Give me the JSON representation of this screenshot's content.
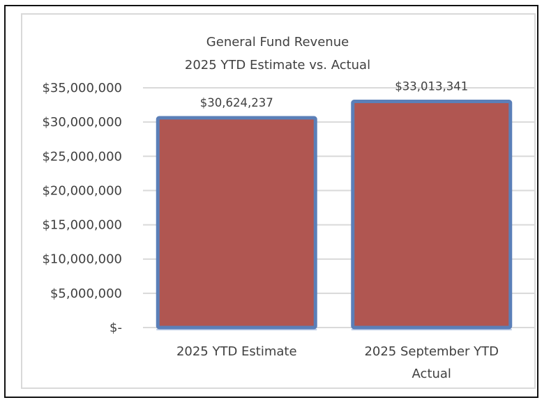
{
  "chart_data": {
    "type": "bar",
    "title": "General Fund Revenue",
    "subtitle": "2025 YTD Estimate vs. Actual",
    "title_lines": [
      "General Fund Revenue",
      "2025 YTD Estimate vs. Actual"
    ],
    "categories": [
      [
        "2025 YTD Estimate"
      ],
      [
        "2025 September YTD",
        "Actual"
      ]
    ],
    "category_names": [
      "2025 YTD Estimate",
      "2025 September YTD Actual"
    ],
    "values": [
      30624237,
      33013341
    ],
    "data_labels": [
      "$30,624,237",
      "$33,013,341"
    ],
    "xlabel": "",
    "ylabel": "",
    "ylim": [
      0,
      35000000
    ],
    "yticks": [
      0,
      5000000,
      10000000,
      15000000,
      20000000,
      25000000,
      30000000,
      35000000
    ],
    "ytick_labels": [
      "$-",
      "$5,000,000",
      "$10,000,000",
      "$15,000,000",
      "$20,000,000",
      "$25,000,000",
      "$30,000,000",
      "$35,000,000"
    ],
    "grid": true,
    "legend": "none",
    "colors": {
      "bar_fill": "#B05651",
      "bar_border": "#5B7FB8",
      "gridline": "#d9d9d9",
      "text": "#404040"
    }
  }
}
